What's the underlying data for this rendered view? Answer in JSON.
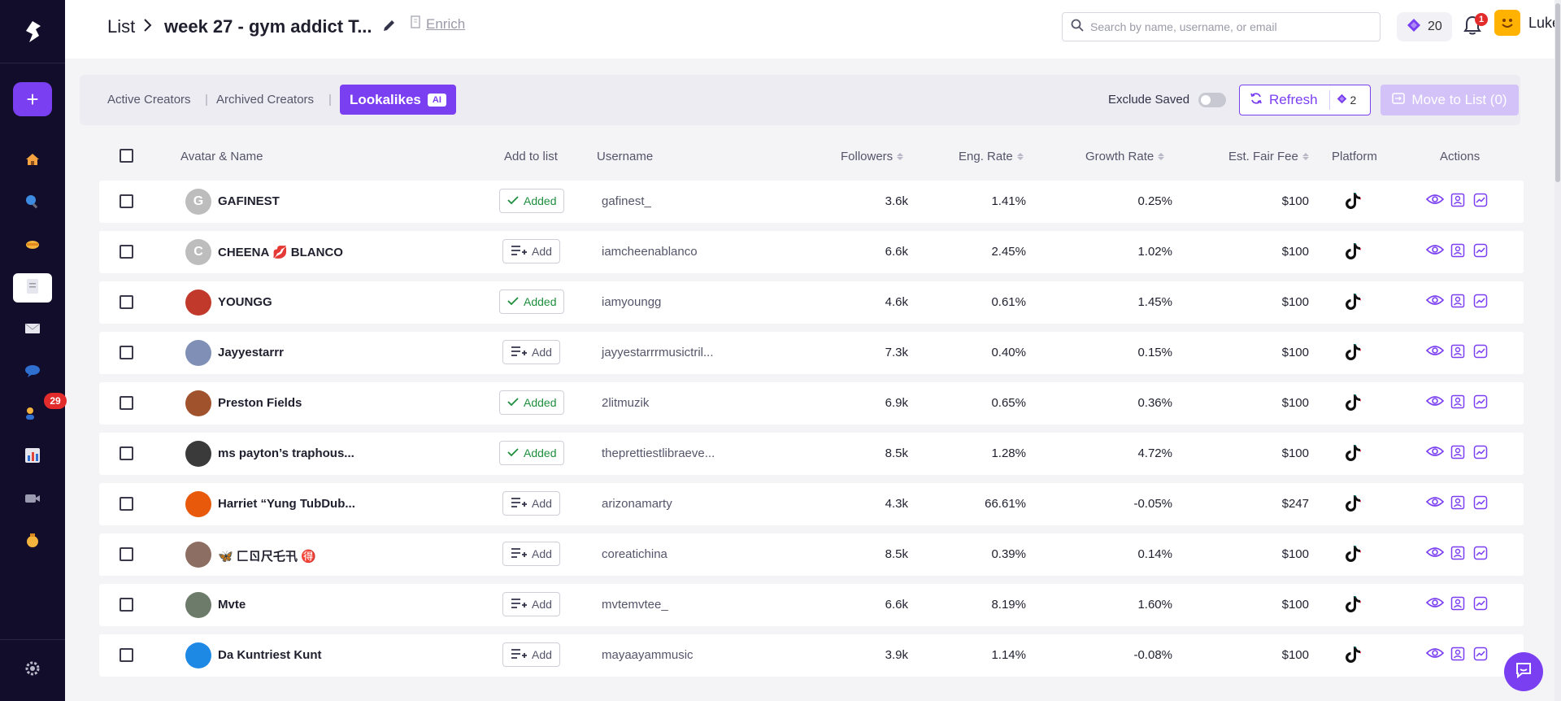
{
  "sidebar": {
    "icons": [
      "logo-icon",
      "home-icon",
      "search-icon",
      "handshake-icon",
      "document-icon",
      "mail-icon",
      "chat-bubble-icon",
      "users-icon",
      "bar-chart-icon",
      "video-icon",
      "money-bag-icon",
      "settings-icon"
    ],
    "users_badge": "29"
  },
  "header": {
    "crumb_root": "List",
    "list_name": "week 27 - gym addict T...",
    "enrich_label": "Enrich",
    "search_placeholder": "Search by name, username, or email",
    "credits": "20",
    "notification_count": "1",
    "user_name": "Luke"
  },
  "tabs": {
    "active_creators": "Active Creators",
    "archived_creators": "Archived Creators",
    "lookalikes": "Lookalikes",
    "ai_chip": "AI",
    "exclude_saved": "Exclude Saved",
    "refresh_label": "Refresh",
    "refresh_cost": "2",
    "move_to_list": "Move to List (0)"
  },
  "table": {
    "headers": {
      "avatar_name": "Avatar & Name",
      "add_to_list": "Add to list",
      "username": "Username",
      "followers": "Followers",
      "eng_rate": "Eng. Rate",
      "growth_rate": "Growth Rate",
      "fair_fee": "Est. Fair Fee",
      "platform": "Platform",
      "actions": "Actions"
    },
    "added_label": "Added",
    "add_label": "Add",
    "rows": [
      {
        "initial": "G",
        "name": "GAFINEST",
        "added": true,
        "username": "gafinest_",
        "followers": "3.6k",
        "eng": "1.41%",
        "growth": "0.25%",
        "fee": "$100",
        "av": "#bdbdbd"
      },
      {
        "initial": "C",
        "name": "CHEENA 💋 BLANCO",
        "added": false,
        "username": "iamcheenablanco",
        "followers": "6.6k",
        "eng": "2.45%",
        "growth": "1.02%",
        "fee": "$100",
        "av": "#bdbdbd"
      },
      {
        "initial": "",
        "name": "YOUNGG",
        "added": true,
        "username": "iamyoungg",
        "followers": "4.6k",
        "eng": "0.61%",
        "growth": "1.45%",
        "fee": "$100",
        "av": "#c0392b"
      },
      {
        "initial": "",
        "name": "Jayyestarrr",
        "added": false,
        "username": "jayyestarrrmusictril...",
        "followers": "7.3k",
        "eng": "0.40%",
        "growth": "0.15%",
        "fee": "$100",
        "av": "#7f8fb5"
      },
      {
        "initial": "",
        "name": "Preston Fields",
        "added": true,
        "username": "2litmuzik",
        "followers": "6.9k",
        "eng": "0.65%",
        "growth": "0.36%",
        "fee": "$100",
        "av": "#a0522d"
      },
      {
        "initial": "",
        "name": "ms payton’s traphous...",
        "added": true,
        "username": "theprettiestlibraeve...",
        "followers": "8.5k",
        "eng": "1.28%",
        "growth": "4.72%",
        "fee": "$100",
        "av": "#3a3a3a"
      },
      {
        "initial": "",
        "name": "Harriet “Yung TubDub...",
        "added": false,
        "username": "arizonamarty",
        "followers": "4.3k",
        "eng": "66.61%",
        "growth": "-0.05%",
        "fee": "$247",
        "av": "#e8590c"
      },
      {
        "initial": "",
        "name": "🦋 匚ㄖ尺乇卂 🉐",
        "added": false,
        "username": "coreatichina",
        "followers": "8.5k",
        "eng": "0.39%",
        "growth": "0.14%",
        "fee": "$100",
        "av": "#8d6e63"
      },
      {
        "initial": "",
        "name": "Mvte",
        "added": false,
        "username": "mvtemvtee_",
        "followers": "6.6k",
        "eng": "8.19%",
        "growth": "1.60%",
        "fee": "$100",
        "av": "#6d7c6a"
      },
      {
        "initial": "",
        "name": "Da Kuntriest Kunt",
        "added": false,
        "username": "mayaayammusic",
        "followers": "3.9k",
        "eng": "1.14%",
        "growth": "-0.08%",
        "fee": "$100",
        "av": "#1e88e5"
      }
    ]
  },
  "colors": {
    "accent": "#7b3ff2",
    "sidebar_bg": "#120d2b",
    "added_green": "#1e8e3e"
  }
}
